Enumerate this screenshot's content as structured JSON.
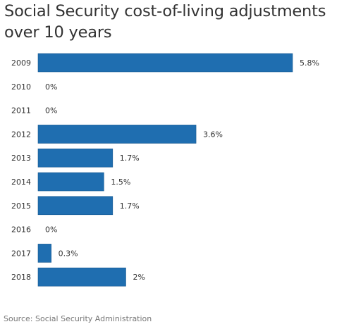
{
  "chart_data": {
    "type": "bar",
    "orientation": "horizontal",
    "title": "Social Security cost-of-living adjustments over 10 years",
    "categories": [
      "2009",
      "2010",
      "2011",
      "2012",
      "2013",
      "2014",
      "2015",
      "2016",
      "2017",
      "2018"
    ],
    "values": [
      5.8,
      0,
      0,
      3.6,
      1.7,
      1.5,
      1.7,
      0,
      0.3,
      2
    ],
    "value_labels": [
      "5.8%",
      "0%",
      "0%",
      "3.6%",
      "1.7%",
      "1.5%",
      "1.7%",
      "0%",
      "0.3%",
      "2%"
    ],
    "xlim": [
      0,
      5.8
    ],
    "grid": false,
    "legend": "none",
    "bar_color": "#1f6eb0"
  },
  "source": "Source: Social Security Administration"
}
